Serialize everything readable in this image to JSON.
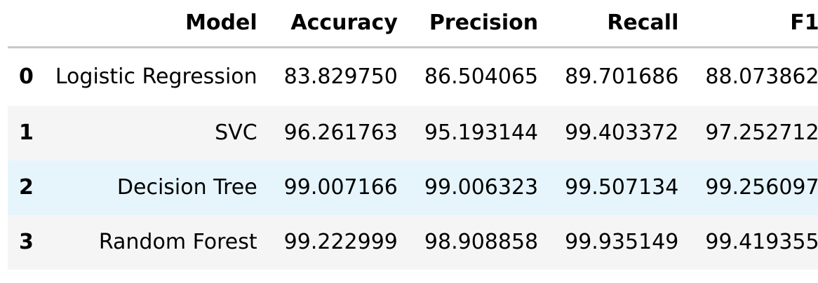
{
  "table": {
    "columns": [
      "",
      "Model",
      "Accuracy",
      "Precision",
      "Recall",
      "F1"
    ],
    "rows": [
      {
        "index": "0",
        "model": "Logistic Regression",
        "accuracy": "83.829750",
        "precision": "86.504065",
        "recall": "89.701686",
        "f1": "88.073862"
      },
      {
        "index": "1",
        "model": "SVC",
        "accuracy": "96.261763",
        "precision": "95.193144",
        "recall": "99.403372",
        "f1": "97.252712"
      },
      {
        "index": "2",
        "model": "Decision Tree",
        "accuracy": "99.007166",
        "precision": "99.006323",
        "recall": "99.507134",
        "f1": "99.256097"
      },
      {
        "index": "3",
        "model": "Random Forest",
        "accuracy": "99.222999",
        "precision": "98.908858",
        "recall": "99.935149",
        "f1": "99.419355"
      }
    ]
  },
  "colors": {
    "header_border": "#c8c8c8",
    "row_stripe": "#f5f5f5",
    "row_hover": "#e5f5fb"
  }
}
